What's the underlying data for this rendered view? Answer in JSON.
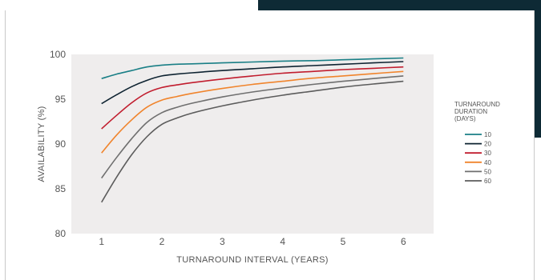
{
  "chart_data": {
    "type": "line",
    "xlabel": "TURNAROUND INTERVAL (YEARS)",
    "ylabel": "AVAILABILITY (%)",
    "xlim": [
      0.5,
      6.5
    ],
    "ylim": [
      80,
      100
    ],
    "xticks": [
      "1",
      "2",
      "3",
      "4",
      "5",
      "6"
    ],
    "yticks": [
      "80",
      "85",
      "90",
      "95",
      "100"
    ],
    "grid": false,
    "legend_title": [
      "TURNAROUND",
      "DURATION",
      "(DAYS)"
    ],
    "legend_position": "right",
    "x": [
      1,
      1.25,
      1.5,
      1.75,
      2,
      2.25,
      2.5,
      3,
      3.5,
      4,
      4.5,
      5,
      5.5,
      6
    ],
    "series": [
      {
        "name": "10",
        "color": "#1a7f86",
        "values": [
          97.3,
          97.8,
          98.2,
          98.6,
          98.8,
          98.9,
          98.95,
          99.05,
          99.15,
          99.25,
          99.3,
          99.4,
          99.5,
          99.6
        ]
      },
      {
        "name": "20",
        "color": "#0e2331",
        "values": [
          94.5,
          95.5,
          96.4,
          97.1,
          97.6,
          97.8,
          97.95,
          98.2,
          98.4,
          98.6,
          98.75,
          98.9,
          99.05,
          99.2
        ]
      },
      {
        "name": "30",
        "color": "#c11d2e",
        "values": [
          91.7,
          93.2,
          94.6,
          95.7,
          96.3,
          96.6,
          96.85,
          97.25,
          97.6,
          97.9,
          98.1,
          98.3,
          98.45,
          98.6
        ]
      },
      {
        "name": "40",
        "color": "#f0842c",
        "values": [
          89.0,
          91.0,
          92.7,
          94.1,
          94.9,
          95.3,
          95.65,
          96.2,
          96.65,
          97.0,
          97.35,
          97.6,
          97.85,
          98.1
        ]
      },
      {
        "name": "50",
        "color": "#6f6f6f",
        "values": [
          86.2,
          88.5,
          90.6,
          92.4,
          93.5,
          94.1,
          94.55,
          95.25,
          95.8,
          96.25,
          96.65,
          97.0,
          97.3,
          97.6
        ]
      },
      {
        "name": "60",
        "color": "#5c5c5c",
        "values": [
          83.5,
          86.3,
          88.8,
          90.8,
          92.2,
          92.9,
          93.45,
          94.25,
          94.9,
          95.45,
          95.9,
          96.35,
          96.7,
          97.0
        ]
      }
    ]
  }
}
